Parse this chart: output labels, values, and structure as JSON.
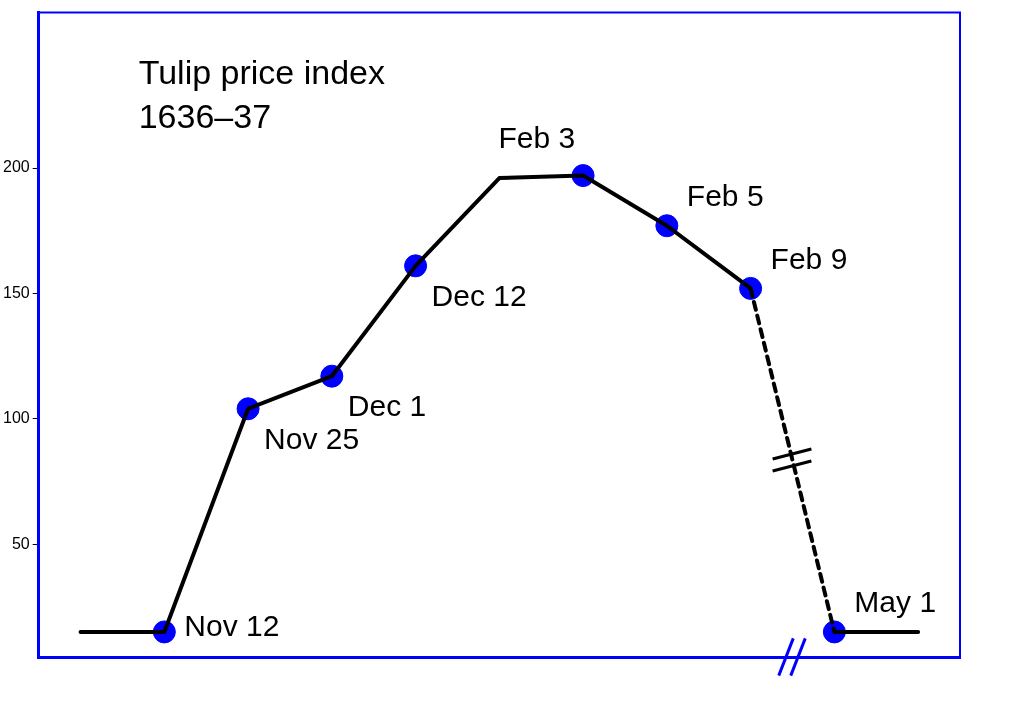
{
  "chart_data": {
    "type": "line",
    "title": "Tulip price index 1636–37",
    "categories": [
      null,
      null,
      null,
      null,
      null,
      null,
      null,
      null,
      null,
      null,
      null
    ],
    "series": [
      {
        "color": "#000000",
        "line_style": "solid",
        "marker": "none",
        "values": [
          15,
          15,
          104,
          117,
          161,
          196,
          197,
          177,
          152,
          null,
          null
        ]
      },
      {
        "color": "#000000",
        "line_style": "dashed",
        "marker": "none",
        "values": [
          null,
          null,
          null,
          null,
          null,
          null,
          null,
          null,
          152,
          15,
          null
        ]
      },
      {
        "color": "#000000",
        "line_style": "solid",
        "marker": "none",
        "values": [
          null,
          null,
          null,
          null,
          null,
          null,
          null,
          null,
          null,
          15,
          15
        ]
      },
      {
        "type": "scatter",
        "color": "#0000ff",
        "marker": "circle",
        "values": [
          null,
          15,
          104,
          117,
          161,
          null,
          197,
          177,
          152,
          15,
          null
        ]
      }
    ],
    "annotations": [
      "Nov 12",
      "Nov 25",
      "Dec 1",
      "Dec 12",
      "Feb 3",
      "Feb 5",
      "Feb 9",
      "May 1"
    ],
    "ylim": [
      5,
      262
    ],
    "yticks": [
      50,
      100,
      150,
      200
    ],
    "tick_labels": "y",
    "grid": false,
    "legend": false
  }
}
